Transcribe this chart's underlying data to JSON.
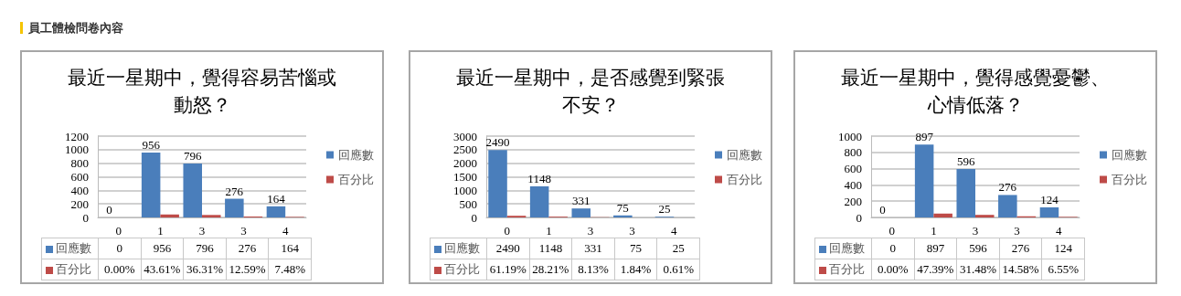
{
  "chart_data": [
    {
      "type": "bar",
      "title": "最近一星期中，覺得容易苦惱或動怒？",
      "annotations": [
        "員工體檢問卷內容"
      ],
      "categories": [
        "0",
        "1",
        "3",
        "3",
        "4"
      ],
      "series": [
        {
          "name": "回應數",
          "color": "#4a7ebb",
          "values": [
            0,
            956,
            796,
            276,
            164
          ],
          "data_labels": true,
          "value_labels": [
            "0",
            "956",
            "796",
            "276",
            "164"
          ]
        },
        {
          "name": "百分比",
          "color": "#be4b48",
          "values": [
            0.0,
            43.61,
            36.31,
            12.59,
            7.48
          ],
          "value_labels": [
            "0.00%",
            "43.61%",
            "36.31%",
            "12.59%",
            "7.48%"
          ]
        }
      ],
      "ylim": [
        0,
        1200
      ],
      "yticks": [
        0,
        200,
        400,
        600,
        800,
        1000,
        1200
      ],
      "grid": "y",
      "legend": "right"
    },
    {
      "type": "bar",
      "title": "最近一星期中，是否感覺到緊張不安？",
      "categories": [
        "0",
        "1",
        "3",
        "3",
        "4"
      ],
      "series": [
        {
          "name": "回應數",
          "color": "#4a7ebb",
          "values": [
            2490,
            1148,
            331,
            75,
            25
          ],
          "data_labels": true,
          "value_labels": [
            "2490",
            "1148",
            "331",
            "75",
            "25"
          ]
        },
        {
          "name": "百分比",
          "color": "#be4b48",
          "values": [
            61.19,
            28.21,
            8.13,
            1.84,
            0.61
          ],
          "value_labels": [
            "61.19%",
            "28.21%",
            "8.13%",
            "1.84%",
            "0.61%"
          ]
        }
      ],
      "ylim": [
        0,
        3000
      ],
      "yticks": [
        0,
        500,
        1000,
        1500,
        2000,
        2500,
        3000
      ],
      "grid": "y",
      "legend": "right"
    },
    {
      "type": "bar",
      "title": "最近一星期中，覺得感覺憂鬱、心情低落？",
      "categories": [
        "0",
        "1",
        "3",
        "3",
        "4"
      ],
      "series": [
        {
          "name": "回應數",
          "color": "#4a7ebb",
          "values": [
            0,
            897,
            596,
            276,
            124
          ],
          "data_labels": true,
          "value_labels": [
            "0",
            "897",
            "596",
            "276",
            "124"
          ]
        },
        {
          "name": "百分比",
          "color": "#be4b48",
          "values": [
            0.0,
            47.39,
            31.48,
            14.58,
            6.55
          ],
          "value_labels": [
            "0.00%",
            "47.39%",
            "31.48%",
            "14.58%",
            "6.55%"
          ]
        }
      ],
      "ylim": [
        0,
        1000
      ],
      "yticks": [
        0,
        200,
        400,
        600,
        800,
        1000
      ],
      "grid": "y",
      "legend": "right"
    }
  ]
}
